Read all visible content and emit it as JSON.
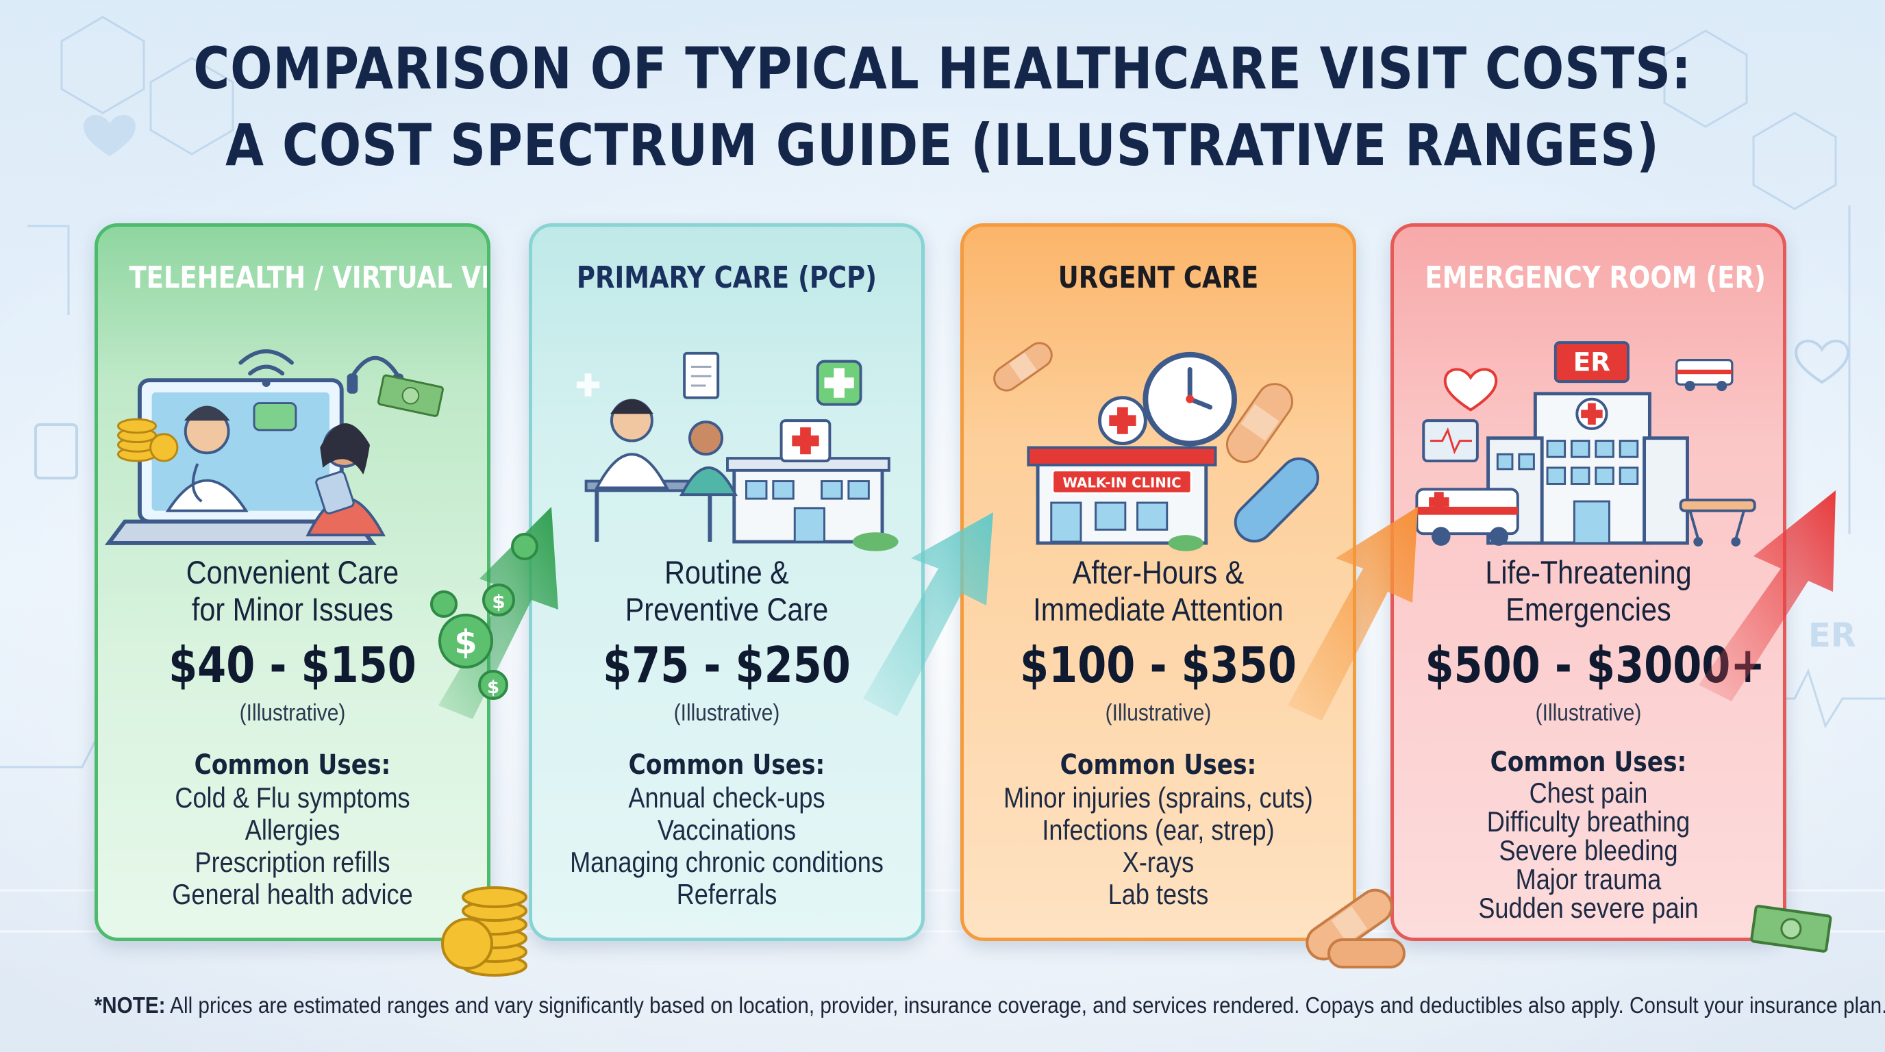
{
  "title": {
    "line1": "COMPARISON OF TYPICAL HEALTHCARE VISIT COSTS:",
    "line2": "A COST SPECTRUM GUIDE (ILLUSTRATIVE RANGES)"
  },
  "cards": [
    {
      "header": "TELEHEALTH / VIRTUAL VISIT",
      "subtitle_line1": "Convenient Care",
      "subtitle_line2": "for Minor Issues",
      "price": "$40 - $150",
      "price_note": "(Illustrative)",
      "uses_heading": "Common Uses:",
      "uses": [
        "Cold & Flu symptoms",
        "Allergies",
        "Prescription refills",
        "General health advice"
      ]
    },
    {
      "header": "PRIMARY CARE (PCP)",
      "subtitle_line1": "Routine &",
      "subtitle_line2": "Preventive Care",
      "price": "$75 - $250",
      "price_note": "(Illustrative)",
      "uses_heading": "Common Uses:",
      "uses": [
        "Annual check-ups",
        "Vaccinations",
        "Managing chronic conditions",
        "Referrals"
      ]
    },
    {
      "header": "URGENT CARE",
      "subtitle_line1": "After-Hours &",
      "subtitle_line2": "Immediate Attention",
      "price": "$100 - $350",
      "price_note": "(Illustrative)",
      "uses_heading": "Common Uses:",
      "uses": [
        "Minor injuries (sprains, cuts)",
        "Infections (ear, strep)",
        "X-rays",
        "Lab tests"
      ],
      "sign": "WALK-IN CLINIC"
    },
    {
      "header": "EMERGENCY ROOM (ER)",
      "subtitle_line1": "Life-Threatening",
      "subtitle_line2": "Emergencies",
      "price": "$500 - $3000+",
      "price_note": "(Illustrative)",
      "uses_heading": "Common Uses:",
      "uses": [
        "Chest pain",
        "Difficulty breathing",
        "Severe bleeding",
        "Major trauma",
        "Sudden severe pain"
      ],
      "sign": "ER"
    }
  ],
  "background_label": "ER",
  "footnote": {
    "prefix": "*NOTE:",
    "text": " All prices are estimated ranges and vary significantly based on location, provider, insurance coverage, and services rendered. Copays and deductibles also apply. Consult your insurance plan."
  },
  "colors": {
    "title": "#14264a",
    "telehealth": "#4cbb6c",
    "primary_care": "#88d3d3",
    "urgent_care": "#f49b3e",
    "emergency": "#e65959"
  }
}
